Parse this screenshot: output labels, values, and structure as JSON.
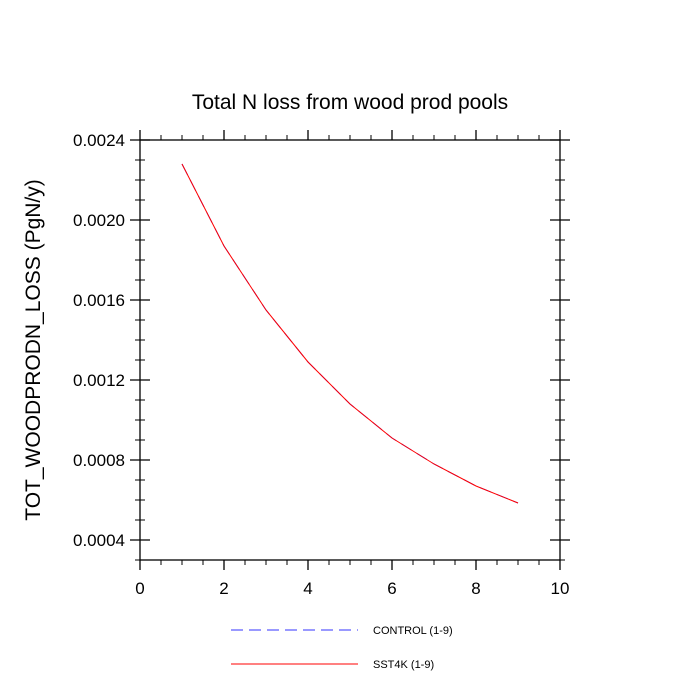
{
  "chart_data": {
    "type": "line",
    "title": "Total N loss from wood prod pools",
    "xlabel": "",
    "ylabel": "TOT_WOODPRODN_LOSS  (PgN/y)",
    "xlim": [
      0,
      10
    ],
    "ylim": [
      0.0003,
      0.0024
    ],
    "xticks": [
      0,
      2,
      4,
      6,
      8,
      10
    ],
    "xtick_labels": [
      "0",
      "2",
      "4",
      "6",
      "8",
      "10"
    ],
    "yticks": [
      0.0004,
      0.0008,
      0.0012,
      0.0016,
      0.002,
      0.0024
    ],
    "ytick_labels": [
      "0.0004",
      "0.0008",
      "0.0012",
      "0.0016",
      "0.0020",
      "0.0024"
    ],
    "grid": false,
    "legend_position": "bottom",
    "x": [
      1,
      2,
      3,
      4,
      5,
      6,
      7,
      8,
      9
    ],
    "series": [
      {
        "name": "CONTROL (1-9)",
        "color": "#3333ff",
        "style": "dashed",
        "values": [
          0.00228,
          0.00187,
          0.00155,
          0.00129,
          0.00108,
          0.00091,
          0.00078,
          0.00067,
          0.000585
        ]
      },
      {
        "name": "SST4K (1-9)",
        "color": "#ff0000",
        "style": "solid",
        "values": [
          0.00228,
          0.00187,
          0.00155,
          0.00129,
          0.00108,
          0.00091,
          0.00078,
          0.00067,
          0.000585
        ]
      }
    ]
  }
}
